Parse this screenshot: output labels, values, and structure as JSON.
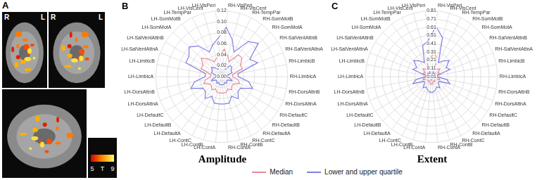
{
  "panel_a": {
    "letter": "A",
    "views": [
      [
        "R",
        "L"
      ],
      [
        "R",
        "L"
      ]
    ],
    "colorbar": {
      "range": [
        5,
        9
      ],
      "title": "T"
    }
  },
  "chart_data": [
    {
      "type": "radar",
      "panel": "B",
      "title": "Amplitude",
      "categories": [
        "RH-VisPeri",
        "RH-VisCent",
        "RH-TempPar",
        "RH-SomMotB",
        "RH-SomMotA",
        "RH-SalVentAttnB",
        "RH-SalVentAttnA",
        "RH-LimbicB",
        "RH-LimbicA",
        "RH-DorsAttnB",
        "RH-DorsAttnA",
        "RH-DefaultC",
        "RH-DefaultB",
        "RH-DefaultA",
        "RH-ContC",
        "RH-ContB",
        "RH-ContA",
        "LH-ContA",
        "LH-ContB",
        "LH-ContC",
        "LH-DefaultA",
        "LH-DefaultB",
        "LH-DefaultC",
        "LH-DorsAttnA",
        "LH-DorsAttnB",
        "LH-LimbicA",
        "LH-LimbicB",
        "LH-SalVentAttnA",
        "LH-SalVentAttnB",
        "LH-SomMotA",
        "LH-SomMotB",
        "LH-TempPar",
        "LH-VisCent",
        "LH-VisPeri"
      ],
      "series": [
        {
          "name": "Median",
          "color": "#e88a94",
          "values": [
            0.05,
            0.04,
            0.03,
            0.05,
            0.05,
            0.04,
            0.04,
            0.02,
            0.02,
            0.03,
            0.035,
            0.025,
            0.025,
            0.03,
            0.025,
            0.03,
            0.03,
            0.03,
            0.03,
            0.025,
            0.03,
            0.025,
            0.025,
            0.035,
            0.03,
            0.02,
            0.02,
            0.04,
            0.04,
            0.05,
            0.04,
            0.03,
            0.035,
            0.04
          ]
        },
        {
          "name": "Lower and upper quartile",
          "color": "#7f7fe6",
          "lower": [
            0.025,
            0.02,
            0.015,
            0.025,
            0.025,
            0.02,
            0.02,
            0.01,
            0.01,
            0.015,
            0.02,
            0.012,
            0.012,
            0.015,
            0.012,
            0.015,
            0.015,
            0.015,
            0.015,
            0.012,
            0.015,
            0.012,
            0.012,
            0.02,
            0.015,
            0.01,
            0.01,
            0.02,
            0.02,
            0.025,
            0.02,
            0.015,
            0.018,
            0.02
          ],
          "upper": [
            0.09,
            0.07,
            0.05,
            0.08,
            0.09,
            0.06,
            0.07,
            0.03,
            0.03,
            0.05,
            0.06,
            0.04,
            0.04,
            0.05,
            0.04,
            0.05,
            0.05,
            0.05,
            0.05,
            0.04,
            0.05,
            0.04,
            0.04,
            0.06,
            0.05,
            0.03,
            0.03,
            0.07,
            0.07,
            0.08,
            0.07,
            0.05,
            0.06,
            0.07
          ]
        }
      ],
      "ylim": [
        0,
        0.12
      ],
      "yticks": [
        {
          "value": 0,
          "label": "0.00"
        },
        0.02,
        0.04,
        0.06,
        0.08,
        {
          "value": 0.1,
          "label": "0.10"
        },
        0.12
      ],
      "grid": true,
      "legend": "bottom"
    },
    {
      "type": "radar",
      "panel": "C",
      "title": "Extent",
      "categories": [
        "RH-VisPeri",
        "RH-VisCent",
        "RH-TempPar",
        "RH-SomMotB",
        "RH-SomMotA",
        "RH-SalVentAttnB",
        "RH-SalVentAttnA",
        "RH-LimbicB",
        "RH-LimbicA",
        "RH-DorsAttnB",
        "RH-DorsAttnA",
        "RH-DefaultC",
        "RH-DefaultB",
        "RH-DefaultA",
        "RH-ContC",
        "RH-ContB",
        "RH-ContA",
        "LH-ContA",
        "LH-ContB",
        "LH-ContC",
        "LH-DefaultA",
        "LH-DefaultB",
        "LH-DefaultC",
        "LH-DorsAttnA",
        "LH-DorsAttnB",
        "LH-LimbicA",
        "LH-LimbicB",
        "LH-SalVentAttnA",
        "LH-SalVentAttnB",
        "LH-SomMotA",
        "LH-SomMotB",
        "LH-TempPar",
        "LH-VisCent",
        "LH-VisPeri"
      ],
      "series": [
        {
          "name": "Median",
          "color": "#e88a94",
          "values": [
            0.3,
            0.25,
            0.1,
            0.12,
            0.15,
            0.1,
            0.12,
            0.04,
            0.04,
            0.1,
            0.12,
            0.06,
            0.06,
            0.08,
            0.07,
            0.08,
            0.1,
            0.1,
            0.08,
            0.07,
            0.08,
            0.06,
            0.06,
            0.12,
            0.1,
            0.04,
            0.04,
            0.12,
            0.1,
            0.15,
            0.12,
            0.1,
            0.2,
            0.22
          ]
        },
        {
          "name": "Lower and upper quartile",
          "color": "#7f7fe6",
          "lower": [
            0.12,
            0.1,
            0.05,
            0.06,
            0.07,
            0.05,
            0.06,
            0.02,
            0.02,
            0.05,
            0.06,
            0.03,
            0.03,
            0.04,
            0.035,
            0.04,
            0.05,
            0.05,
            0.04,
            0.035,
            0.04,
            0.03,
            0.03,
            0.06,
            0.05,
            0.02,
            0.02,
            0.06,
            0.05,
            0.07,
            0.06,
            0.05,
            0.09,
            0.1
          ],
          "upper": [
            0.62,
            0.5,
            0.2,
            0.25,
            0.3,
            0.22,
            0.25,
            0.08,
            0.08,
            0.2,
            0.25,
            0.12,
            0.12,
            0.18,
            0.15,
            0.18,
            0.2,
            0.2,
            0.18,
            0.15,
            0.18,
            0.12,
            0.12,
            0.25,
            0.2,
            0.08,
            0.08,
            0.25,
            0.22,
            0.3,
            0.25,
            0.2,
            0.4,
            0.45
          ]
        }
      ],
      "ylim": [
        0.01,
        0.81
      ],
      "yticks": [
        0.01,
        0.11,
        0.21,
        0.31,
        0.41,
        0.51,
        0.61,
        0.71,
        0.81
      ],
      "grid": true,
      "legend": "bottom"
    }
  ]
}
